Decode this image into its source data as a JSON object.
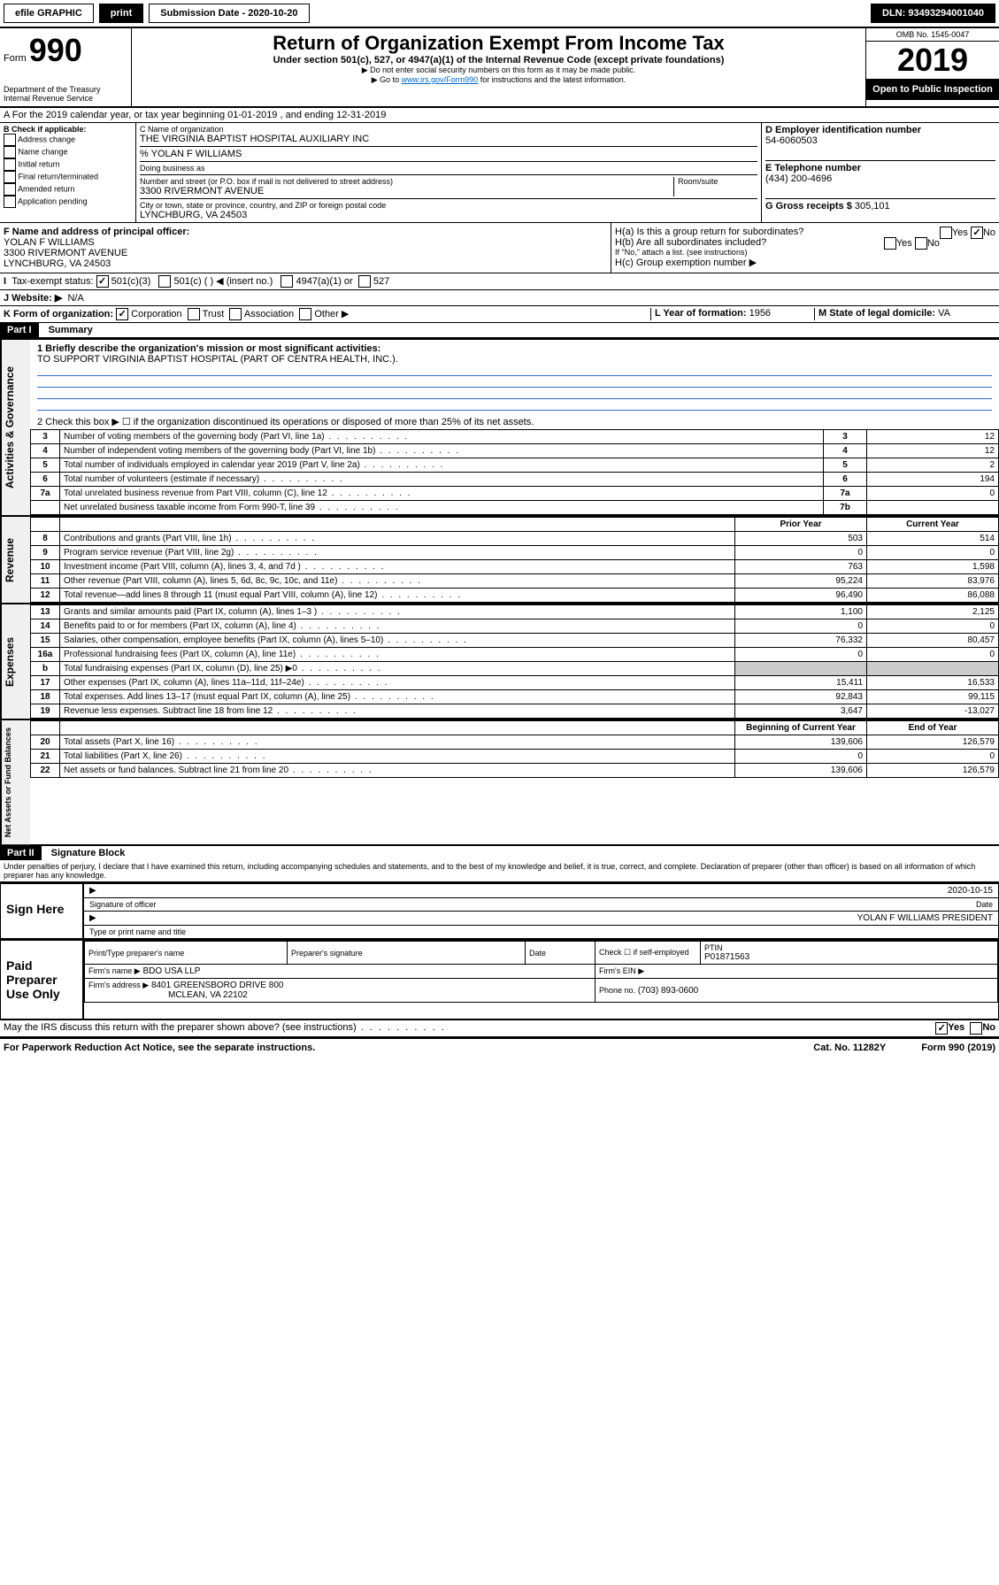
{
  "topbar": {
    "efile": "efile GRAPHIC",
    "print": "print",
    "sub_label": "Submission Date - 2020-10-20",
    "dln": "DLN: 93493294001040"
  },
  "header": {
    "form_small": "Form",
    "form_num": "990",
    "dept": "Department of the Treasury\nInternal Revenue Service",
    "title": "Return of Organization Exempt From Income Tax",
    "subtitle": "Under section 501(c), 527, or 4947(a)(1) of the Internal Revenue Code (except private foundations)",
    "note1": "▶ Do not enter social security numbers on this form as it may be made public.",
    "note2_pre": "▶ Go to ",
    "note2_link": "www.irs.gov/Form990",
    "note2_post": " for instructions and the latest information.",
    "omb": "OMB No. 1545-0047",
    "year": "2019",
    "open": "Open to Public Inspection"
  },
  "period": {
    "text": "A For the 2019 calendar year, or tax year beginning 01-01-2019   , and ending 12-31-2019"
  },
  "boxB": {
    "title": "B Check if applicable:",
    "items": [
      "Address change",
      "Name change",
      "Initial return",
      "Final return/terminated",
      "Amended return",
      "Application pending"
    ]
  },
  "boxC": {
    "label": "C Name of organization",
    "name": "THE VIRGINIA BAPTIST HOSPITAL AUXILIARY INC",
    "care": "% YOLAN F WILLIAMS",
    "dba_label": "Doing business as",
    "addr_label": "Number and street (or P.O. box if mail is not delivered to street address)",
    "addr": "3300 RIVERMONT AVENUE",
    "room_label": "Room/suite",
    "city_label": "City or town, state or province, country, and ZIP or foreign postal code",
    "city": "LYNCHBURG, VA  24503"
  },
  "boxD": {
    "label": "D Employer identification number",
    "ein": "54-6060503"
  },
  "boxE": {
    "label": "E Telephone number",
    "phone": "(434) 200-4696"
  },
  "boxG": {
    "label": "G Gross receipts $",
    "val": "305,101"
  },
  "boxF": {
    "label": "F Name and address of principal officer:",
    "name": "YOLAN F WILLIAMS",
    "addr1": "3300 RIVERMONT AVENUE",
    "addr2": "LYNCHBURG, VA  24503"
  },
  "boxH": {
    "a": "H(a)  Is this a group return for subordinates?",
    "b": "H(b)  Are all subordinates included?",
    "note": "If \"No,\" attach a list. (see instructions)",
    "c": "H(c)  Group exemption number ▶"
  },
  "boxI": {
    "label": "Tax-exempt status:",
    "opt1": "501(c)(3)",
    "opt2": "501(c) (  ) ◀ (insert no.)",
    "opt3": "4947(a)(1) or",
    "opt4": "527"
  },
  "boxJ": {
    "label": "J  Website: ▶",
    "val": "N/A"
  },
  "boxK": {
    "label": "K Form of organization:",
    "opts": [
      "Corporation",
      "Trust",
      "Association",
      "Other ▶"
    ]
  },
  "boxL": {
    "label": "L Year of formation:",
    "val": "1956"
  },
  "boxM": {
    "label": "M State of legal domicile:",
    "val": "VA"
  },
  "part1": {
    "hdr": "Part I",
    "title": "Summary",
    "q1_label": "1  Briefly describe the organization's mission or most significant activities:",
    "q1_text": "TO SUPPORT VIRGINIA BAPTIST HOSPITAL (PART OF CENTRA HEALTH, INC.).",
    "q2": "2   Check this box ▶ ☐  if the organization discontinued its operations or disposed of more than 25% of its net assets.",
    "lines_activities": [
      {
        "n": "3",
        "t": "Number of voting members of the governing body (Part VI, line 1a)",
        "box": "3",
        "v": "12"
      },
      {
        "n": "4",
        "t": "Number of independent voting members of the governing body (Part VI, line 1b)",
        "box": "4",
        "v": "12"
      },
      {
        "n": "5",
        "t": "Total number of individuals employed in calendar year 2019 (Part V, line 2a)",
        "box": "5",
        "v": "2"
      },
      {
        "n": "6",
        "t": "Total number of volunteers (estimate if necessary)",
        "box": "6",
        "v": "194"
      },
      {
        "n": "7a",
        "t": "Total unrelated business revenue from Part VIII, column (C), line 12",
        "box": "7a",
        "v": "0"
      },
      {
        "n": "",
        "t": "Net unrelated business taxable income from Form 990-T, line 39",
        "box": "7b",
        "v": ""
      }
    ],
    "col_prior": "Prior Year",
    "col_current": "Current Year",
    "revenue": [
      {
        "n": "8",
        "t": "Contributions and grants (Part VIII, line 1h)",
        "p": "503",
        "c": "514"
      },
      {
        "n": "9",
        "t": "Program service revenue (Part VIII, line 2g)",
        "p": "0",
        "c": "0"
      },
      {
        "n": "10",
        "t": "Investment income (Part VIII, column (A), lines 3, 4, and 7d )",
        "p": "763",
        "c": "1,598"
      },
      {
        "n": "11",
        "t": "Other revenue (Part VIII, column (A), lines 5, 6d, 8c, 9c, 10c, and 11e)",
        "p": "95,224",
        "c": "83,976"
      },
      {
        "n": "12",
        "t": "Total revenue—add lines 8 through 11 (must equal Part VIII, column (A), line 12)",
        "p": "96,490",
        "c": "86,088"
      }
    ],
    "expenses": [
      {
        "n": "13",
        "t": "Grants and similar amounts paid (Part IX, column (A), lines 1–3 )",
        "p": "1,100",
        "c": "2,125"
      },
      {
        "n": "14",
        "t": "Benefits paid to or for members (Part IX, column (A), line 4)",
        "p": "0",
        "c": "0"
      },
      {
        "n": "15",
        "t": "Salaries, other compensation, employee benefits (Part IX, column (A), lines 5–10)",
        "p": "76,332",
        "c": "80,457"
      },
      {
        "n": "16a",
        "t": "Professional fundraising fees (Part IX, column (A), line 11e)",
        "p": "0",
        "c": "0"
      },
      {
        "n": "b",
        "t": "Total fundraising expenses (Part IX, column (D), line 25) ▶0",
        "p": "",
        "c": ""
      },
      {
        "n": "17",
        "t": "Other expenses (Part IX, column (A), lines 11a–11d, 11f–24e)",
        "p": "15,411",
        "c": "16,533"
      },
      {
        "n": "18",
        "t": "Total expenses. Add lines 13–17 (must equal Part IX, column (A), line 25)",
        "p": "92,843",
        "c": "99,115"
      },
      {
        "n": "19",
        "t": "Revenue less expenses. Subtract line 18 from line 12",
        "p": "3,647",
        "c": "-13,027"
      }
    ],
    "col_begin": "Beginning of Current Year",
    "col_end": "End of Year",
    "netassets": [
      {
        "n": "20",
        "t": "Total assets (Part X, line 16)",
        "p": "139,606",
        "c": "126,579"
      },
      {
        "n": "21",
        "t": "Total liabilities (Part X, line 26)",
        "p": "0",
        "c": "0"
      },
      {
        "n": "22",
        "t": "Net assets or fund balances. Subtract line 21 from line 20",
        "p": "139,606",
        "c": "126,579"
      }
    ]
  },
  "part2": {
    "hdr": "Part II",
    "title": "Signature Block",
    "perjury": "Under penalties of perjury, I declare that I have examined this return, including accompanying schedules and statements, and to the best of my knowledge and belief, it is true, correct, and complete. Declaration of preparer (other than officer) is based on all information of which preparer has any knowledge."
  },
  "sign": {
    "left": "Sign Here",
    "sig_officer": "Signature of officer",
    "date": "2020-10-15",
    "date_label": "Date",
    "name": "YOLAN F WILLIAMS  PRESIDENT",
    "name_label": "Type or print name and title"
  },
  "paid": {
    "left": "Paid Preparer Use Only",
    "prep_name_label": "Print/Type preparer's name",
    "prep_sig_label": "Preparer's signature",
    "date_label": "Date",
    "check_label": "Check ☐ if self-employed",
    "ptin_label": "PTIN",
    "ptin": "P01871563",
    "firm_name_label": "Firm's name     ▶",
    "firm_name": "BDO USA LLP",
    "firm_ein_label": "Firm's EIN ▶",
    "firm_addr_label": "Firm's address ▶",
    "firm_addr": "8401 GREENSBORO DRIVE 800",
    "firm_city": "MCLEAN, VA  22102",
    "phone_label": "Phone no.",
    "phone": "(703) 893-0600"
  },
  "footer": {
    "discuss": "May the IRS discuss this return with the preparer shown above? (see instructions)",
    "paperwork": "For Paperwork Reduction Act Notice, see the separate instructions.",
    "cat": "Cat. No. 11282Y",
    "form": "Form 990 (2019)"
  },
  "yesno": {
    "yes": "Yes",
    "no": "No"
  }
}
